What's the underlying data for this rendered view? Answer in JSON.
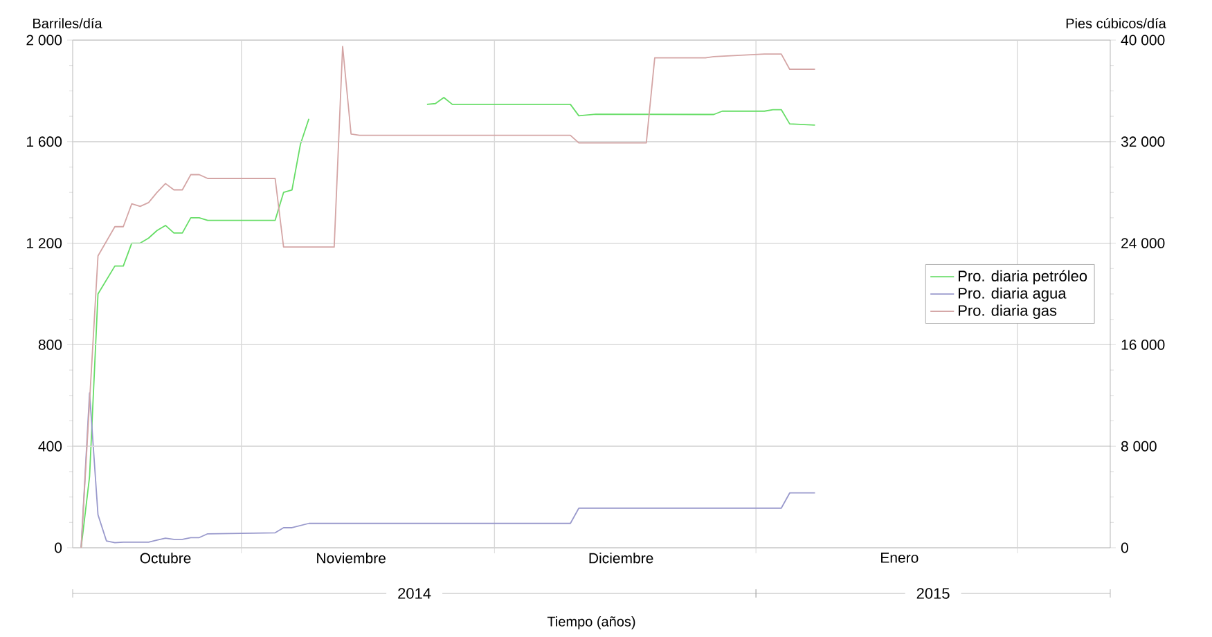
{
  "chart_data": {
    "type": "line",
    "xlabel": "Tiempo (años)",
    "ylabel": "Barriles/día",
    "y2label": "Pies cúbicos/día",
    "xlim": [
      "2014-10-12",
      "2015-02-12"
    ],
    "xticks": [
      {
        "value": "2014-11-01",
        "label": null
      },
      {
        "value": "2014-12-01",
        "label": null
      },
      {
        "value": "2015-01-01",
        "label": null
      },
      {
        "value": "2015-02-01",
        "label": null
      },
      {
        "value": "2014-10-23",
        "label": "Octubre"
      },
      {
        "value": "2014-11-14",
        "label": "Noviembre"
      },
      {
        "value": "2014-12-16",
        "label": "Diciembre"
      },
      {
        "value": "2015-01-18",
        "label": "Enero"
      }
    ],
    "ylim": [
      0,
      2000
    ],
    "yticks": [
      0,
      400,
      800,
      {
        "value": 1200,
        "label": "1 200"
      },
      {
        "value": 1600,
        "label": "1 600"
      },
      {
        "value": 2000,
        "label": "2 000"
      }
    ],
    "y2lim": [
      0,
      40000
    ],
    "y2ticks": [
      0,
      {
        "value": 8000,
        "label": "8 000"
      },
      {
        "value": 16000,
        "label": "16 000"
      },
      {
        "value": 24000,
        "label": "24 000"
      },
      {
        "value": 32000,
        "label": "32 000"
      },
      {
        "value": 40000,
        "label": "40 000"
      }
    ],
    "grid": true,
    "legend": "right",
    "annotations": [
      "2014",
      "2015"
    ],
    "series": [
      {
        "name": "Pro. diaria petróleo",
        "color": "#66dd66",
        "x": [
          "2014-10-13",
          "2014-10-14",
          "2014-10-15",
          "2014-10-17",
          "2014-10-18",
          "2014-10-19",
          "2014-10-20",
          "2014-10-21",
          "2014-10-22",
          "2014-10-23",
          "2014-10-24",
          "2014-10-25",
          "2014-10-26",
          "2014-10-27",
          "2014-10-28",
          "2014-11-05",
          "2014-11-06",
          "2014-11-07",
          "2014-11-08",
          "2014-11-09",
          "2014-11-16",
          "2014-11-23",
          "2014-11-24",
          "2014-11-25",
          "2014-11-26",
          "2014-12-10",
          "2014-12-11",
          "2014-12-13",
          "2014-12-27",
          "2014-12-28",
          "2015-01-02",
          "2015-01-03",
          "2015-01-04",
          "2015-01-05",
          "2015-01-08"
        ],
        "values": [
          0,
          280,
          1000,
          1110,
          1110,
          1200,
          1200,
          1220,
          1250,
          1270,
          1240,
          1240,
          1300,
          1300,
          1290,
          1290,
          1400,
          1410,
          1590,
          1690,
          null,
          1747,
          1750,
          1774,
          1747,
          1747,
          1702,
          1708,
          1707,
          1720,
          1720,
          1726,
          1726,
          1670,
          1665
        ]
      },
      {
        "name": "Pro. diaria agua",
        "color": "#9999cc",
        "x": [
          "2014-10-13",
          "2014-10-14",
          "2014-10-15",
          "2014-10-16",
          "2014-10-17",
          "2014-10-18",
          "2014-10-21",
          "2014-10-22",
          "2014-10-23",
          "2014-10-24",
          "2014-10-25",
          "2014-10-26",
          "2014-10-27",
          "2014-10-28",
          "2014-11-05",
          "2014-11-06",
          "2014-11-07",
          "2014-11-09",
          "2014-12-10",
          "2014-12-11",
          "2015-01-04",
          "2015-01-05",
          "2015-01-08"
        ],
        "values": [
          0,
          610,
          130,
          27,
          20,
          22,
          22,
          30,
          38,
          33,
          33,
          40,
          40,
          55,
          59,
          79,
          79,
          96,
          96,
          156,
          156,
          216,
          216
        ]
      },
      {
        "name": "Pro. diaria gas",
        "color": "#d4a5a5",
        "axis": "y2",
        "x": [
          "2014-10-13",
          "2014-10-15",
          "2014-10-17",
          "2014-10-18",
          "2014-10-19",
          "2014-10-20",
          "2014-10-21",
          "2014-10-22",
          "2014-10-23",
          "2014-10-24",
          "2014-10-25",
          "2014-10-26",
          "2014-10-27",
          "2014-10-28",
          "2014-11-05",
          "2014-11-06",
          "2014-11-12",
          "2014-11-13",
          "2014-11-14",
          "2014-11-15",
          "2014-12-10",
          "2014-12-11",
          "2014-12-19",
          "2014-12-20",
          "2014-12-26",
          "2014-12-27",
          "2015-01-02",
          "2015-01-04",
          "2015-01-05",
          "2015-01-08"
        ],
        "values": [
          0,
          23000,
          25300,
          25300,
          27100,
          26900,
          27200,
          28000,
          28700,
          28200,
          28200,
          29400,
          29400,
          29100,
          29100,
          23700,
          23700,
          39500,
          32600,
          32500,
          32500,
          31900,
          31900,
          38600,
          38600,
          38700,
          38900,
          38900,
          37700,
          37700
        ]
      }
    ]
  }
}
